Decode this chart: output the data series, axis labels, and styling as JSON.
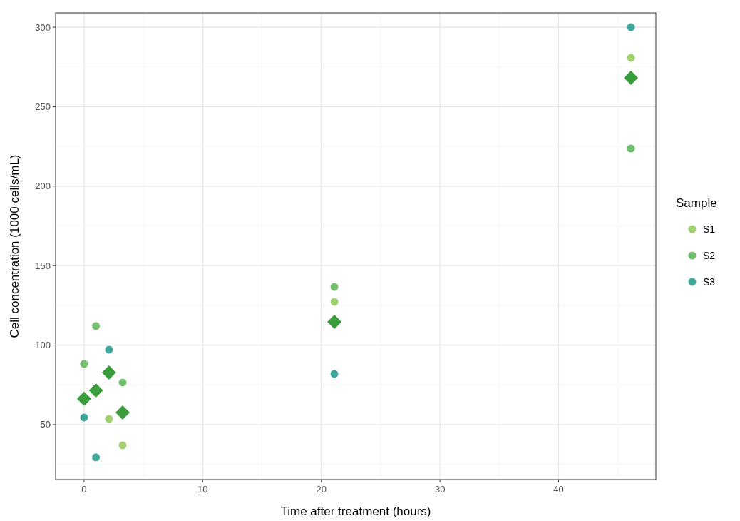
{
  "chart_data": {
    "type": "scatter",
    "xlabel": "Time after treatment (hours)",
    "ylabel": "Cell concentration (1000 cells/mL)",
    "legend_title": "Sample",
    "legend": "right",
    "grid": true,
    "marker": "circle",
    "xlim": [
      -2.4,
      48.2
    ],
    "xticks": [
      0,
      10,
      20,
      30,
      40
    ],
    "ylim": [
      15.4,
      309
    ],
    "yticks": [
      50,
      100,
      150,
      200,
      250,
      300
    ],
    "series": [
      {
        "name": "S1",
        "color": "#a1d16e",
        "x": [
          2.1,
          3.25,
          21.1,
          46.1
        ],
        "values": [
          53.6,
          37,
          127.2,
          280.7
        ]
      },
      {
        "name": "S2",
        "color": "#72bf6f",
        "x": [
          0,
          1,
          3.25,
          21.1,
          46.1
        ],
        "values": [
          88.2,
          112,
          76.5,
          136.6,
          223.7
        ]
      },
      {
        "name": "S3",
        "color": "#3fa89b",
        "x": [
          0,
          1,
          2.1,
          21.1,
          46.1
        ],
        "values": [
          54.5,
          29.4,
          97.1,
          81.9,
          300
        ]
      },
      {
        "marker": "diamond",
        "color": "#3a9d3c",
        "x": [
          0,
          1,
          2.1,
          3.25,
          21.1,
          46.1
        ],
        "values": [
          66.2,
          71.5,
          82.7,
          57.6,
          114.6,
          268.1
        ]
      }
    ]
  }
}
